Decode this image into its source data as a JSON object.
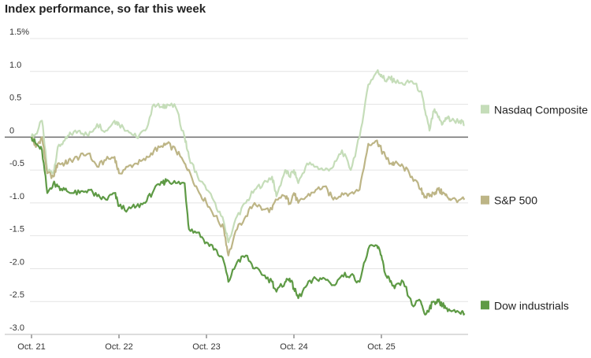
{
  "chart_data": {
    "type": "line",
    "title": "Index performance, so far this week",
    "xlabel": "",
    "ylabel": "",
    "ylim": [
      -3.0,
      1.5
    ],
    "y_ticks": [
      "1.5%",
      "1.0",
      "0.5",
      "0",
      "-0.5",
      "-1.0",
      "-1.5",
      "-2.0",
      "-2.5",
      "-3.0"
    ],
    "x_ticks": [
      "Oct. 21",
      "Oct. 22",
      "Oct. 23",
      "Oct. 24",
      "Oct. 25"
    ],
    "x_range": [
      0,
      5
    ],
    "grid": "horizontal",
    "legend": "right",
    "zero_line": true,
    "series": [
      {
        "name": "Nasdaq Composite",
        "color": "#c5ddb9",
        "x": [
          0,
          0.05,
          0.12,
          0.18,
          0.25,
          0.3,
          0.38,
          0.45,
          0.55,
          0.65,
          0.75,
          0.85,
          0.95,
          1.0,
          1.1,
          1.2,
          1.3,
          1.4,
          1.5,
          1.55,
          1.65,
          1.75,
          1.8,
          1.9,
          2.0,
          2.1,
          2.2,
          2.25,
          2.35,
          2.45,
          2.55,
          2.65,
          2.75,
          2.8,
          2.9,
          2.95,
          3.0,
          3.05,
          3.15,
          3.25,
          3.35,
          3.45,
          3.55,
          3.65,
          3.75,
          3.85,
          3.95,
          4.0,
          4.05,
          4.1,
          4.15,
          4.25,
          4.35,
          4.45,
          4.5,
          4.55,
          4.6,
          4.65,
          4.7,
          4.75,
          4.8,
          4.9,
          4.95
        ],
        "values": [
          0.0,
          0.05,
          0.25,
          -0.5,
          -0.55,
          -0.15,
          -0.05,
          0.05,
          0.1,
          0.02,
          0.2,
          0.1,
          0.25,
          0.2,
          0.1,
          0.0,
          0.1,
          0.5,
          0.45,
          0.5,
          0.45,
          0.0,
          -0.3,
          -0.6,
          -0.8,
          -1.0,
          -1.3,
          -1.6,
          -1.2,
          -1.0,
          -0.8,
          -0.7,
          -0.6,
          -0.9,
          -0.5,
          -0.6,
          -0.5,
          -0.7,
          -0.4,
          -0.45,
          -0.5,
          -0.45,
          -0.2,
          -0.5,
          0.0,
          0.8,
          1.0,
          0.95,
          0.85,
          0.9,
          0.85,
          0.8,
          0.85,
          0.7,
          0.4,
          0.1,
          0.4,
          0.3,
          0.2,
          0.3,
          0.25,
          0.25,
          0.18
        ]
      },
      {
        "name": "S&P 500",
        "color": "#bdb586",
        "x": [
          0,
          0.05,
          0.12,
          0.18,
          0.25,
          0.3,
          0.38,
          0.45,
          0.55,
          0.65,
          0.75,
          0.85,
          0.95,
          1.0,
          1.1,
          1.2,
          1.3,
          1.4,
          1.5,
          1.55,
          1.65,
          1.75,
          1.8,
          1.9,
          2.0,
          2.1,
          2.2,
          2.25,
          2.35,
          2.45,
          2.55,
          2.65,
          2.75,
          2.8,
          2.9,
          2.95,
          3.0,
          3.05,
          3.15,
          3.25,
          3.35,
          3.45,
          3.55,
          3.65,
          3.75,
          3.85,
          3.95,
          4.0,
          4.05,
          4.1,
          4.15,
          4.25,
          4.35,
          4.45,
          4.5,
          4.55,
          4.6,
          4.65,
          4.7,
          4.75,
          4.8,
          4.9,
          4.95
        ],
        "values": [
          0.0,
          -0.15,
          0.0,
          -0.55,
          -0.6,
          -0.4,
          -0.4,
          -0.35,
          -0.3,
          -0.25,
          -0.45,
          -0.35,
          -0.3,
          -0.55,
          -0.45,
          -0.4,
          -0.35,
          -0.2,
          -0.15,
          -0.1,
          -0.2,
          -0.4,
          -0.5,
          -0.8,
          -1.0,
          -1.2,
          -1.4,
          -1.8,
          -1.4,
          -1.2,
          -1.0,
          -1.1,
          -1.1,
          -0.95,
          -0.9,
          -1.0,
          -0.85,
          -1.0,
          -0.9,
          -0.8,
          -0.75,
          -0.95,
          -0.85,
          -0.85,
          -0.8,
          -0.1,
          -0.05,
          -0.2,
          -0.3,
          -0.4,
          -0.4,
          -0.45,
          -0.6,
          -0.8,
          -0.9,
          -0.9,
          -0.85,
          -0.8,
          -0.85,
          -0.9,
          -0.95,
          -0.95,
          -0.95
        ]
      },
      {
        "name": "Dow industrials",
        "color": "#5e9a45",
        "x": [
          0,
          0.05,
          0.12,
          0.18,
          0.25,
          0.3,
          0.38,
          0.45,
          0.55,
          0.65,
          0.75,
          0.85,
          0.95,
          1.0,
          1.1,
          1.2,
          1.3,
          1.4,
          1.5,
          1.55,
          1.65,
          1.75,
          1.8,
          1.9,
          2.0,
          2.1,
          2.2,
          2.25,
          2.35,
          2.45,
          2.55,
          2.65,
          2.75,
          2.8,
          2.9,
          2.95,
          3.0,
          3.05,
          3.15,
          3.25,
          3.35,
          3.45,
          3.55,
          3.65,
          3.75,
          3.85,
          3.95,
          4.0,
          4.05,
          4.1,
          4.15,
          4.25,
          4.35,
          4.45,
          4.5,
          4.55,
          4.6,
          4.65,
          4.7,
          4.75,
          4.8,
          4.9,
          4.95
        ],
        "values": [
          0.0,
          -0.1,
          -0.2,
          -0.85,
          -0.7,
          -0.75,
          -0.8,
          -0.85,
          -0.85,
          -0.8,
          -0.9,
          -0.95,
          -0.85,
          -1.05,
          -1.1,
          -1.05,
          -1.0,
          -0.8,
          -0.7,
          -0.65,
          -0.7,
          -0.7,
          -1.4,
          -1.45,
          -1.6,
          -1.7,
          -1.9,
          -2.2,
          -1.9,
          -1.8,
          -2.0,
          -2.1,
          -2.2,
          -2.35,
          -2.2,
          -2.15,
          -2.3,
          -2.45,
          -2.25,
          -2.15,
          -2.15,
          -2.25,
          -2.1,
          -2.1,
          -2.2,
          -1.7,
          -1.65,
          -1.8,
          -2.1,
          -2.2,
          -2.3,
          -2.2,
          -2.55,
          -2.5,
          -2.7,
          -2.6,
          -2.5,
          -2.5,
          -2.55,
          -2.6,
          -2.65,
          -2.68,
          -2.68
        ]
      }
    ]
  }
}
